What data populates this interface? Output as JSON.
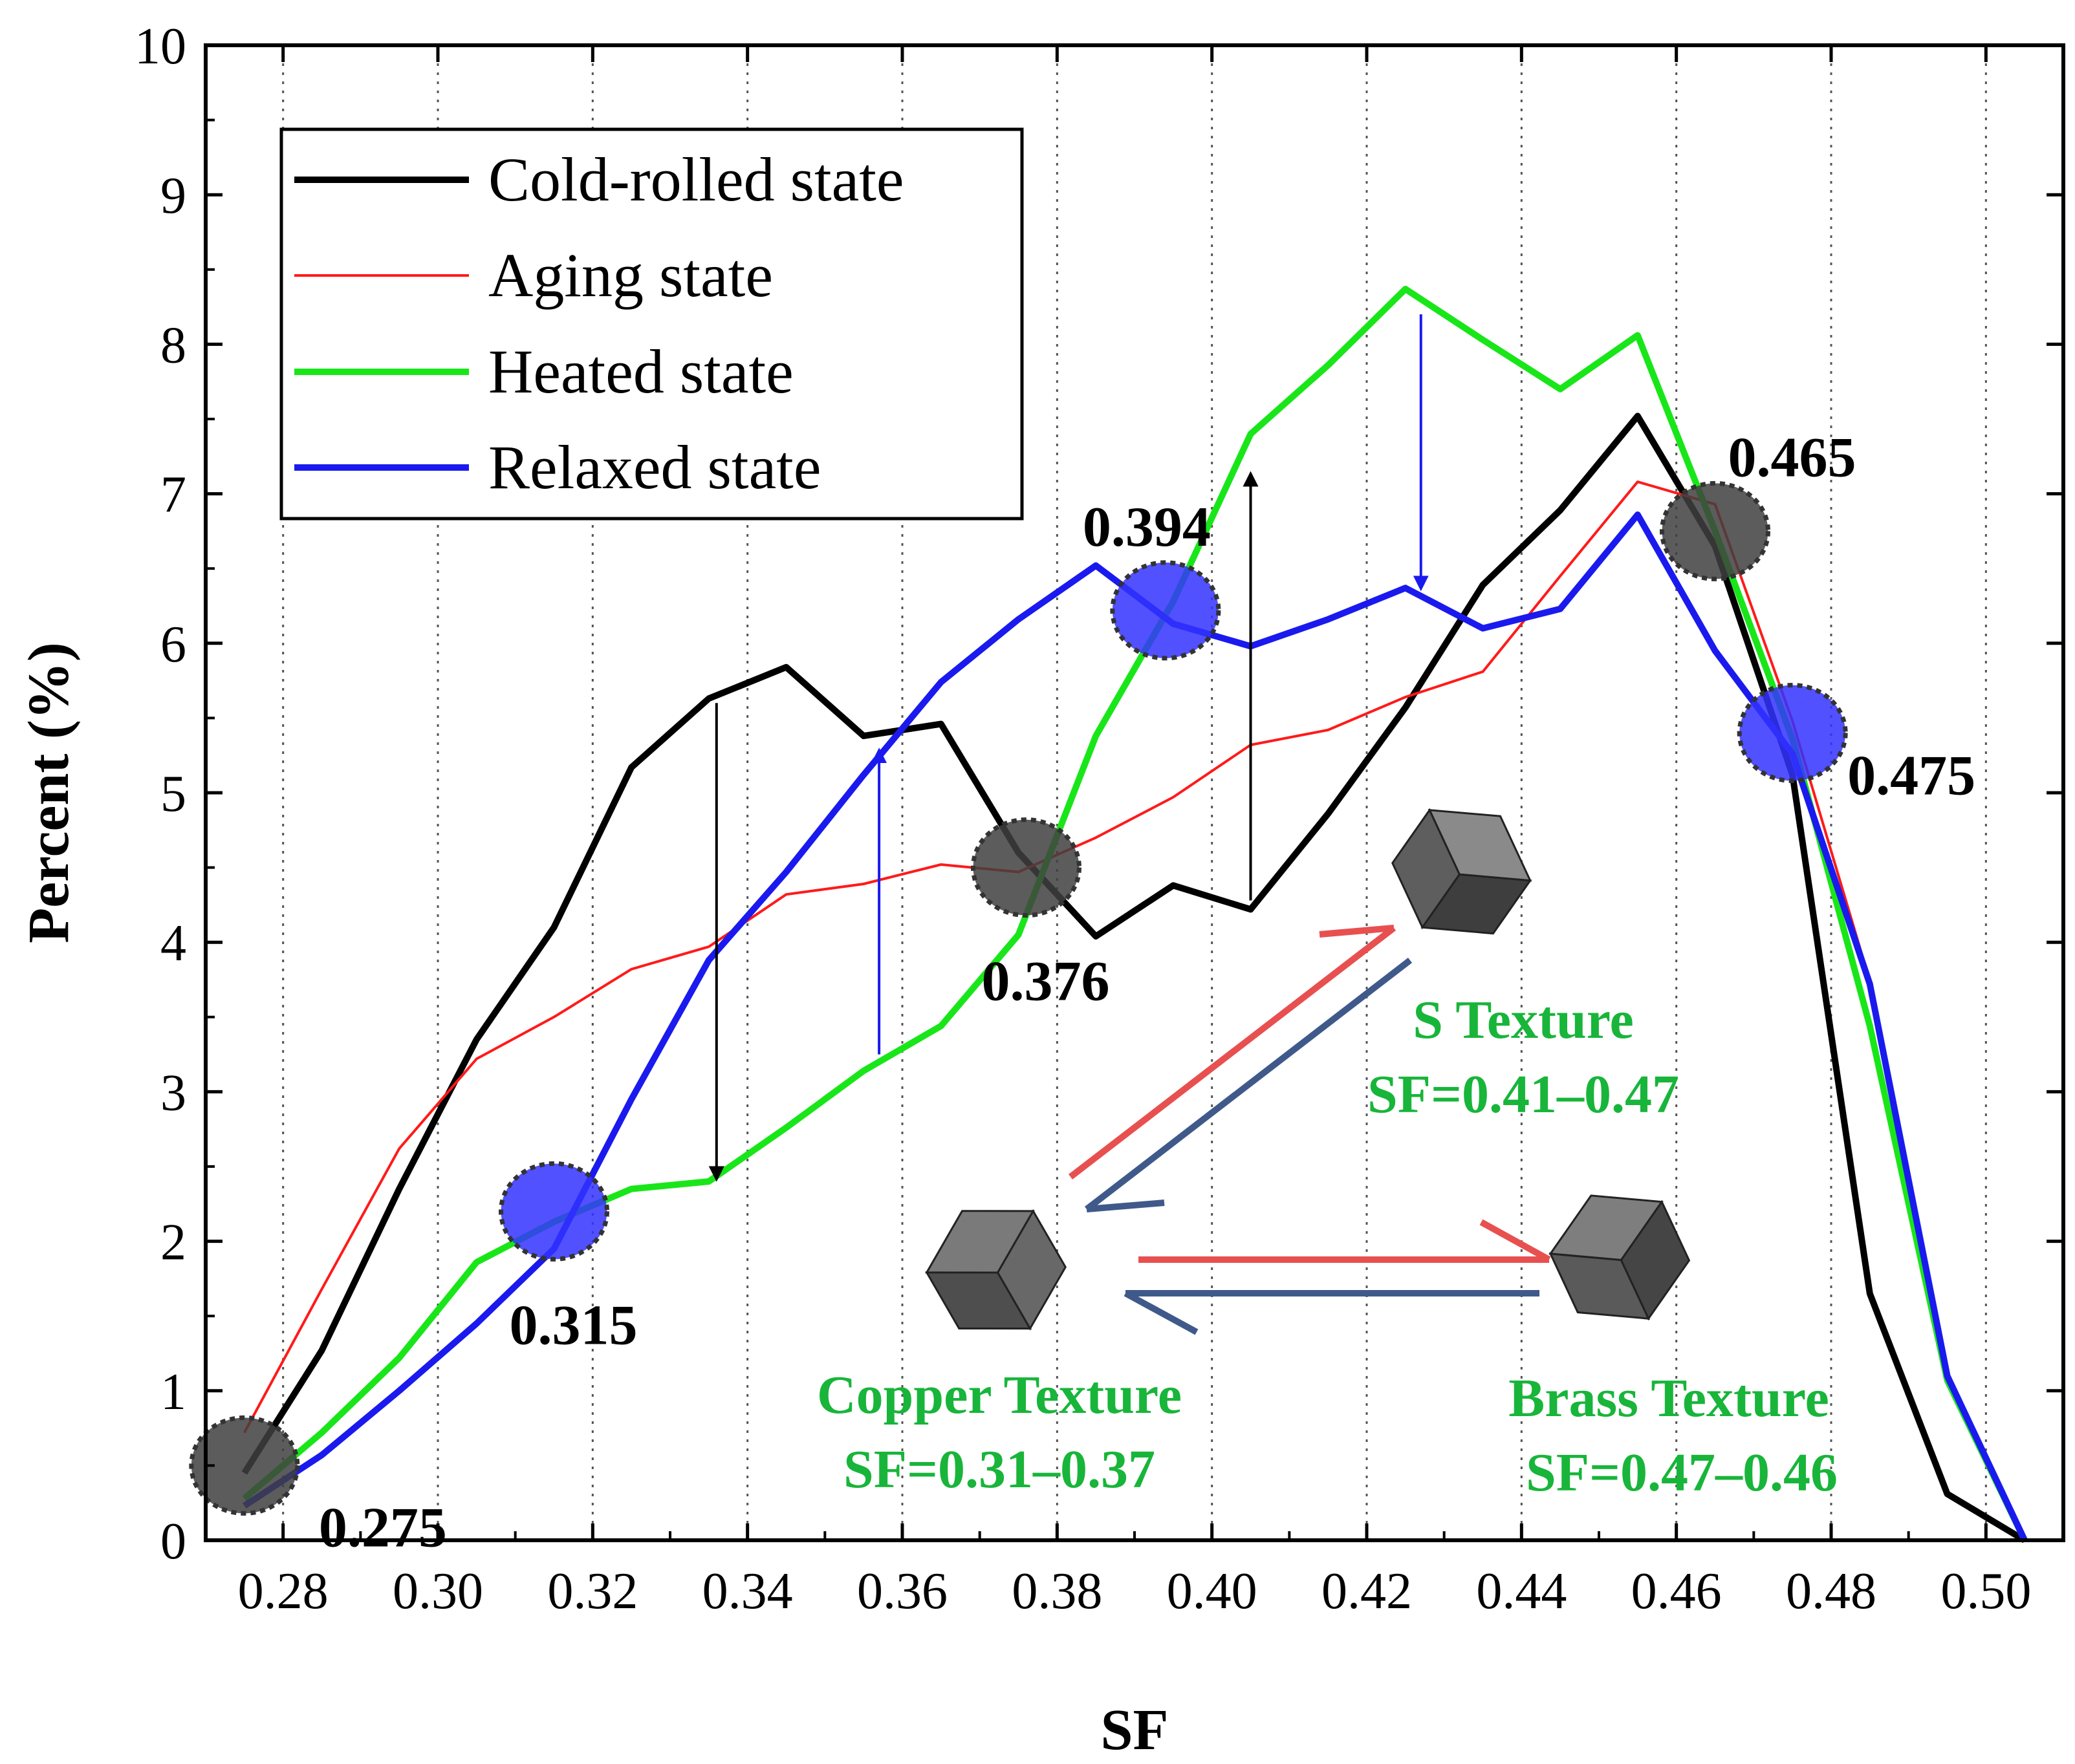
{
  "chart_data": {
    "type": "line",
    "title": "",
    "xlabel": "SF",
    "ylabel": "Percent (%)",
    "xlim": [
      0.27,
      0.51
    ],
    "ylim": [
      0,
      10
    ],
    "xticks": [
      0.28,
      0.3,
      0.32,
      0.34,
      0.36,
      0.38,
      0.4,
      0.42,
      0.44,
      0.46,
      0.48,
      0.5
    ],
    "xtick_labels": [
      "0.28",
      "0.30",
      "0.32",
      "0.34",
      "0.36",
      "0.38",
      "0.40",
      "0.42",
      "0.44",
      "0.46",
      "0.48",
      "0.50"
    ],
    "yticks": [
      0,
      1,
      2,
      3,
      4,
      5,
      6,
      7,
      8,
      9,
      10
    ],
    "ytick_labels": [
      "0",
      "1",
      "2",
      "3",
      "4",
      "5",
      "6",
      "7",
      "8",
      "9",
      "10"
    ],
    "grid": "vertical dotted",
    "legend_position": "top-left",
    "series": [
      {
        "name": "Cold-rolled state",
        "color": "#000000",
        "stroke": "thick",
        "points": [
          [
            0.275,
            0.45
          ],
          [
            0.285,
            1.27
          ],
          [
            0.295,
            2.35
          ],
          [
            0.305,
            3.35
          ],
          [
            0.315,
            4.1
          ],
          [
            0.325,
            5.17
          ],
          [
            0.335,
            5.63
          ],
          [
            0.345,
            5.84
          ],
          [
            0.355,
            5.38
          ],
          [
            0.365,
            5.46
          ],
          [
            0.375,
            4.6
          ],
          [
            0.385,
            4.04
          ],
          [
            0.395,
            4.38
          ],
          [
            0.405,
            4.22
          ],
          [
            0.415,
            4.86
          ],
          [
            0.425,
            5.57
          ],
          [
            0.435,
            6.39
          ],
          [
            0.445,
            6.89
          ],
          [
            0.455,
            7.52
          ],
          [
            0.465,
            6.65
          ],
          [
            0.475,
            5.12
          ],
          [
            0.485,
            1.65
          ],
          [
            0.495,
            0.31
          ],
          [
            0.505,
            0.0
          ]
        ]
      },
      {
        "name": "Aging state",
        "color": "#ff1a1a",
        "stroke": "thin",
        "points": [
          [
            0.275,
            0.72
          ],
          [
            0.285,
            1.68
          ],
          [
            0.295,
            2.62
          ],
          [
            0.305,
            3.22
          ],
          [
            0.315,
            3.5
          ],
          [
            0.325,
            3.82
          ],
          [
            0.335,
            3.97
          ],
          [
            0.345,
            4.32
          ],
          [
            0.355,
            4.39
          ],
          [
            0.365,
            4.52
          ],
          [
            0.375,
            4.47
          ],
          [
            0.385,
            4.7
          ],
          [
            0.395,
            4.97
          ],
          [
            0.405,
            5.32
          ],
          [
            0.415,
            5.42
          ],
          [
            0.425,
            5.64
          ],
          [
            0.435,
            5.81
          ],
          [
            0.445,
            6.45
          ],
          [
            0.455,
            7.08
          ],
          [
            0.465,
            6.93
          ],
          [
            0.475,
            5.48
          ],
          [
            0.485,
            3.74
          ],
          [
            0.495,
            1.08
          ],
          [
            0.505,
            0.0
          ]
        ]
      },
      {
        "name": "Heated state",
        "color": "#19e619",
        "stroke": "thick",
        "points": [
          [
            0.275,
            0.28
          ],
          [
            0.285,
            0.72
          ],
          [
            0.295,
            1.22
          ],
          [
            0.305,
            1.86
          ],
          [
            0.315,
            2.13
          ],
          [
            0.325,
            2.35
          ],
          [
            0.335,
            2.4
          ],
          [
            0.345,
            2.76
          ],
          [
            0.355,
            3.14
          ],
          [
            0.365,
            3.44
          ],
          [
            0.375,
            4.05
          ],
          [
            0.385,
            5.38
          ],
          [
            0.395,
            6.28
          ],
          [
            0.405,
            7.4
          ],
          [
            0.415,
            7.86
          ],
          [
            0.425,
            8.37
          ],
          [
            0.435,
            8.03
          ],
          [
            0.445,
            7.7
          ],
          [
            0.455,
            8.06
          ],
          [
            0.465,
            6.75
          ],
          [
            0.475,
            5.36
          ],
          [
            0.485,
            3.44
          ],
          [
            0.495,
            1.07
          ],
          [
            0.505,
            0.0
          ]
        ]
      },
      {
        "name": "Relaxed state",
        "color": "#1a1aee",
        "stroke": "thick",
        "points": [
          [
            0.275,
            0.23
          ],
          [
            0.285,
            0.57
          ],
          [
            0.295,
            1.0
          ],
          [
            0.305,
            1.45
          ],
          [
            0.315,
            1.95
          ],
          [
            0.325,
            2.95
          ],
          [
            0.335,
            3.88
          ],
          [
            0.345,
            4.47
          ],
          [
            0.355,
            5.12
          ],
          [
            0.365,
            5.74
          ],
          [
            0.375,
            6.16
          ],
          [
            0.385,
            6.52
          ],
          [
            0.395,
            6.13
          ],
          [
            0.405,
            5.98
          ],
          [
            0.415,
            6.16
          ],
          [
            0.425,
            6.37
          ],
          [
            0.435,
            6.1
          ],
          [
            0.445,
            6.23
          ],
          [
            0.455,
            6.86
          ],
          [
            0.465,
            5.95
          ],
          [
            0.475,
            5.26
          ],
          [
            0.485,
            3.72
          ],
          [
            0.495,
            1.1
          ],
          [
            0.505,
            0.0
          ]
        ]
      }
    ],
    "markers": [
      {
        "x": 0.275,
        "y": 0.5,
        "color": "#404040",
        "label": "0.275",
        "label_side": "right-below"
      },
      {
        "x": 0.315,
        "y": 2.2,
        "color": "#3333ff",
        "label": "0.315",
        "label_side": "below"
      },
      {
        "x": 0.376,
        "y": 4.5,
        "color": "#404040",
        "label": "0.376",
        "label_side": "below"
      },
      {
        "x": 0.394,
        "y": 6.22,
        "color": "#3333ff",
        "label": "0.394",
        "label_side": "above"
      },
      {
        "x": 0.465,
        "y": 6.75,
        "color": "#404040",
        "label": "0.465",
        "label_side": "above"
      },
      {
        "x": 0.475,
        "y": 5.4,
        "color": "#3333ff",
        "label": "0.475",
        "label_side": "right-below"
      }
    ],
    "arrows": [
      {
        "x": 0.336,
        "from": 5.6,
        "to": 2.45,
        "color": "#000000"
      },
      {
        "x": 0.357,
        "from": 3.25,
        "to": 5.25,
        "color": "#1a1aee"
      },
      {
        "x": 0.405,
        "from": 4.28,
        "to": 7.1,
        "color": "#000000"
      },
      {
        "x": 0.427,
        "from": 8.2,
        "to": 6.4,
        "color": "#1a1aee"
      }
    ],
    "textures": [
      {
        "name": "S Texture",
        "range": "SF=0.41–0.47"
      },
      {
        "name": "Copper Texture",
        "range": "SF=0.31–0.37"
      },
      {
        "name": "Brass Texture",
        "range": "SF=0.47–0.46"
      }
    ],
    "texture_arrow_colors": {
      "forward": "#e85050",
      "backward": "#3f5a8a"
    }
  }
}
